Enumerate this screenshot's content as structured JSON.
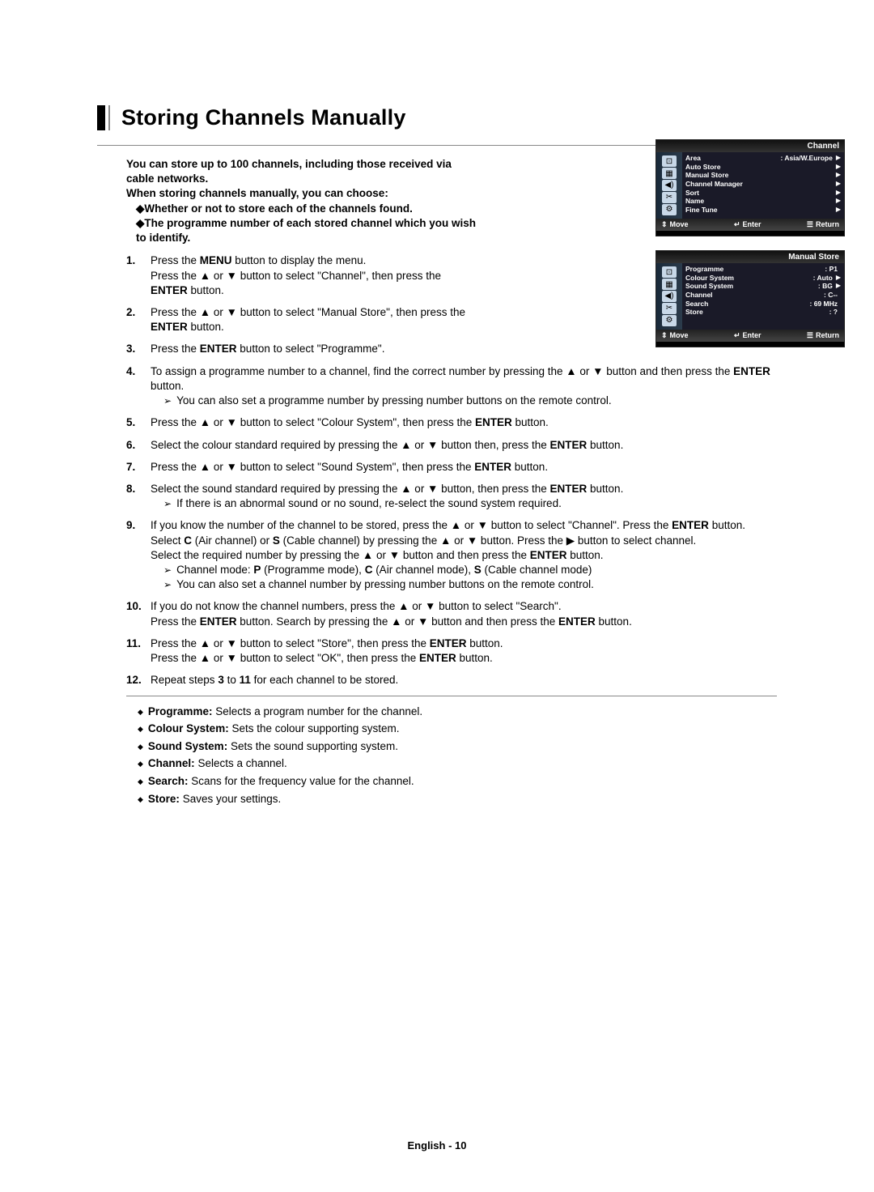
{
  "title": "Storing Channels Manually",
  "intro": {
    "line1": "You can store up to 100 channels, including those received via cable networks.",
    "line2": "When storing channels manually, you can choose:",
    "b1": "◆Whether or not to store each of the channels found.",
    "b2": "◆The programme number of each stored channel which you wish to identify."
  },
  "steps": {
    "s1": "Press the MENU button to display the menu.\nPress the ▲ or ▼ button to select \"Channel\", then press the ENTER button.",
    "s2": "Press the ▲ or ▼ button to select \"Manual Store\", then press the ENTER button.",
    "s3": "Press the ENTER button to select \"Programme\".",
    "s4": "To assign a programme number to a channel, find the correct number by pressing the ▲ or ▼ button and then press the ENTER button.",
    "s4n": "You can also set a programme number by pressing number buttons on the remote control.",
    "s5": "Press the ▲ or ▼ button to select \"Colour System\", then press the ENTER button.",
    "s6": "Select the colour standard required by pressing the ▲ or ▼ button then, press the ENTER button.",
    "s7": "Press the ▲ or ▼ button to select \"Sound System\", then press the ENTER button.",
    "s8": "Select the sound standard required by pressing the ▲ or ▼ button, then press the ENTER button.",
    "s8n": "If there is an abnormal sound or no sound, re-select the sound system required.",
    "s9a": "If you know the number of the channel to be stored, press the ▲ or ▼ button to select \"Channel\". Press the ENTER button. Select C (Air channel) or S (Cable channel) by pressing the ▲ or ▼ button. Press the ▶ button to select channel.",
    "s9b": "Select the required number by pressing the ▲ or ▼ button and then press the ENTER button.",
    "s9n1": "Channel mode: P (Programme mode), C (Air channel mode), S (Cable channel mode)",
    "s9n2": "You can also set a channel number by pressing number buttons on the remote control.",
    "s10": "If you do not know the channel numbers, press the ▲ or ▼ button to select \"Search\".\nPress the ENTER button. Search by pressing the ▲ or ▼ button and then press the ENTER button.",
    "s11": "Press the ▲ or ▼ button to select \"Store\", then press the ENTER button.\nPress the ▲ or ▼ button to select \"OK\", then press the ENTER button.",
    "s12": "Repeat steps 3 to 11 for each channel to be stored."
  },
  "defs": {
    "d1k": "Programme:",
    "d1v": " Selects a program number for the channel.",
    "d2k": "Colour System:",
    "d2v": " Sets the colour supporting system.",
    "d3k": "Sound System:",
    "d3v": " Sets the sound supporting system.",
    "d4k": "Channel:",
    "d4v": " Selects a channel.",
    "d5k": "Search:",
    "d5v": " Scans for the frequency value for the channel.",
    "d6k": "Store:",
    "d6v": " Saves your settings."
  },
  "osd1": {
    "title": "Channel",
    "items": [
      {
        "k": "Area",
        "v": ": Asia/W.Europe",
        "a": "▶"
      },
      {
        "k": "Auto Store",
        "v": "",
        "a": "▶"
      },
      {
        "k": "Manual Store",
        "v": "",
        "a": "▶"
      },
      {
        "k": "Channel Manager",
        "v": "",
        "a": "▶"
      },
      {
        "k": "Sort",
        "v": "",
        "a": "▶"
      },
      {
        "k": "Name",
        "v": "",
        "a": "▶"
      },
      {
        "k": "Fine Tune",
        "v": "",
        "a": "▶"
      }
    ],
    "foot": {
      "m": "Move",
      "e": "Enter",
      "r": "Return"
    }
  },
  "osd2": {
    "title": "Manual Store",
    "items": [
      {
        "k": "Programme",
        "v": ": P1",
        "a": ""
      },
      {
        "k": "Colour System",
        "v": ": Auto",
        "a": "▶"
      },
      {
        "k": "Sound System",
        "v": ": BG",
        "a": "▶"
      },
      {
        "k": "Channel",
        "v": ": C--",
        "a": ""
      },
      {
        "k": "Search",
        "v": ": 69   MHz",
        "a": ""
      },
      {
        "k": "Store",
        "v": ": ?",
        "a": ""
      }
    ],
    "foot": {
      "m": "Move",
      "e": "Enter",
      "r": "Return"
    }
  },
  "footer": "English - 10",
  "icons": [
    "⌕",
    "▦",
    "◀))",
    "✂",
    "⚙"
  ]
}
